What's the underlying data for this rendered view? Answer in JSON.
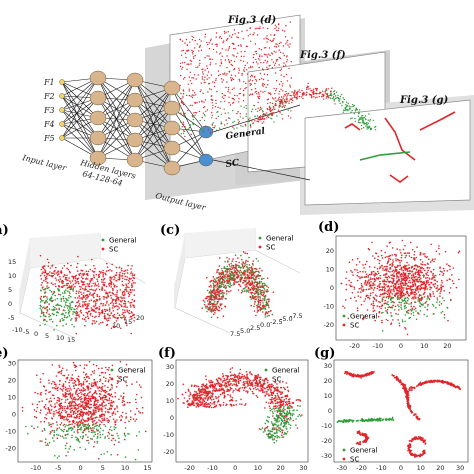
{
  "top": {
    "inputs": [
      "F1",
      "F2",
      "F3",
      "F4",
      "F5"
    ],
    "input_layer": "Input layer",
    "hidden_layers": "Hidden layers",
    "hidden_dims": "64-128-64",
    "output_layer": "Output layer",
    "out_general": "General",
    "out_sc": "SC",
    "fig_d": "Fig.3 (d)",
    "fig_f": "Fig.3 (f)",
    "fig_g": "Fig.3 (g)"
  },
  "labels": {
    "a": "(a)",
    "c": "(c)",
    "d": "(d)",
    "e": "(e)",
    "f": "(f)",
    "g": "(g)"
  },
  "legend": {
    "general": "General",
    "sc": "SC"
  },
  "colors": {
    "general": "#2e9e3a",
    "sc": "#e0262b"
  },
  "chart_data": [
    {
      "id": "3d-left",
      "type": "scatter",
      "projection": "3d",
      "zticks": [
        "-5",
        "0",
        "5",
        "10",
        "15"
      ],
      "xticks": [
        "-10",
        "-5",
        "0",
        "5",
        "10",
        "15"
      ],
      "yticks": [
        "10",
        "15",
        "20"
      ]
    },
    {
      "id": "3d-mid",
      "type": "scatter",
      "projection": "3d",
      "xticks": [
        "7.5",
        "5.0",
        "2.5",
        "0.0",
        "-2.5",
        "-5.0",
        "-7.5"
      ]
    },
    {
      "id": "d",
      "type": "scatter",
      "xticks": [
        "-20",
        "-10",
        "0",
        "10",
        "20"
      ],
      "yticks": [
        "-20",
        "-10",
        "0",
        "10",
        "20"
      ],
      "xlim": [
        -28,
        28
      ],
      "ylim": [
        -28,
        28
      ]
    },
    {
      "id": "e",
      "type": "scatter",
      "xticks": [
        "-10",
        "-5",
        "0",
        "5",
        "10",
        "15"
      ],
      "yticks": [
        "-20",
        "-10",
        "0",
        "10",
        "20",
        "30"
      ],
      "xlim": [
        -14,
        16
      ],
      "ylim": [
        -28,
        32
      ]
    },
    {
      "id": "f",
      "type": "scatter",
      "xticks": [
        "-20",
        "-10",
        "0",
        "10",
        "20",
        "30"
      ],
      "yticks": [
        "-20",
        "-10",
        "0",
        "10",
        "20",
        "30"
      ],
      "xlim": [
        -26,
        32
      ],
      "ylim": [
        -26,
        34
      ]
    },
    {
      "id": "g",
      "type": "scatter",
      "xticks": [
        "-30",
        "-20",
        "-10",
        "0",
        "10",
        "20",
        "30"
      ],
      "yticks": [
        "-30",
        "-20",
        "-10",
        "0",
        "10",
        "20",
        "30"
      ],
      "xlim": [
        -34,
        34
      ],
      "ylim": [
        -34,
        34
      ]
    }
  ]
}
